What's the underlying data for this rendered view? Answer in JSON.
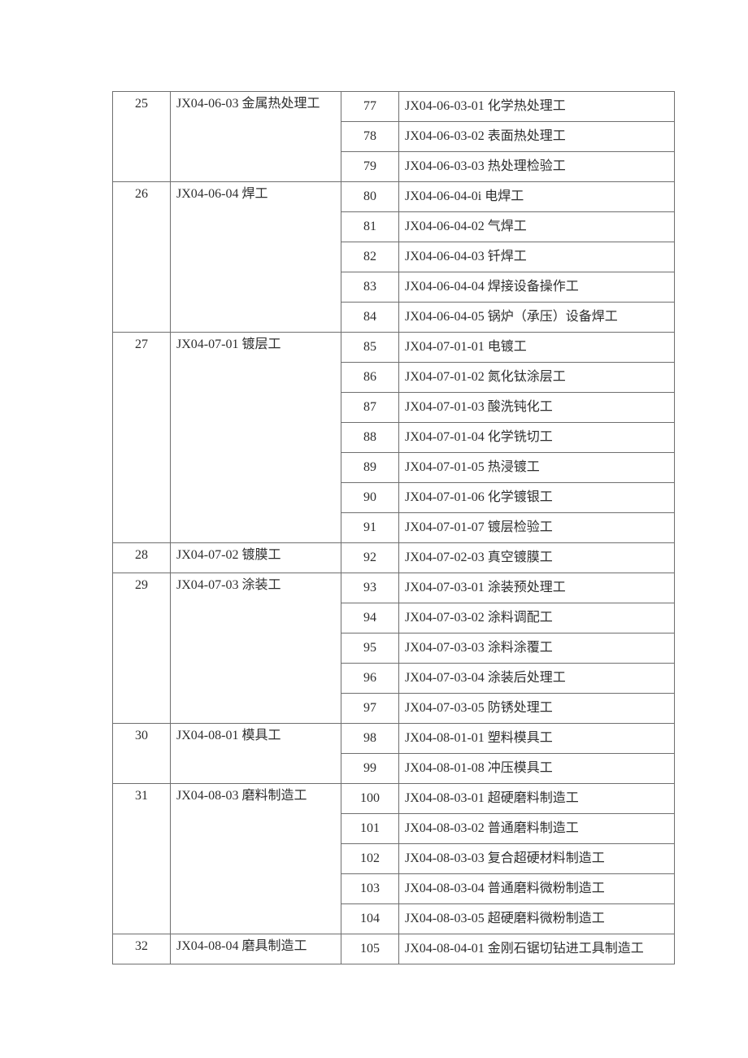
{
  "page": {
    "background": "#ffffff",
    "text_color": "#2e2e2e",
    "border_color": "#6f6f6f"
  },
  "table": {
    "groups": [
      {
        "seq": "25",
        "label": "JX04-06-03 金属热处理工",
        "items": [
          {
            "num": "77",
            "label": "JX04-06-03-01 化学热处理工"
          },
          {
            "num": "78",
            "label": "JX04-06-03-02 表面热处理工"
          },
          {
            "num": "79",
            "label": "JX04-06-03-03 热处理检验工"
          }
        ]
      },
      {
        "seq": "26",
        "label": "JX04-06-04 焊工",
        "items": [
          {
            "num": "80",
            "label": "JX04-06-04-0i 电焊工"
          },
          {
            "num": "81",
            "label": "JX04-06-04-02 气焊工"
          },
          {
            "num": "82",
            "label": "JX04-06-04-03 钎焊工"
          },
          {
            "num": "83",
            "label": "JX04-06-04-04 焊接设备操作工"
          },
          {
            "num": "84",
            "label": "JX04-06-04-05 锅炉（承压）设备焊工"
          }
        ]
      },
      {
        "seq": "27",
        "label": "JX04-07-01 镀层工",
        "items": [
          {
            "num": "85",
            "label": "JX04-07-01-01 电镀工"
          },
          {
            "num": "86",
            "label": "JX04-07-01-02 氮化钛涂层工"
          },
          {
            "num": "87",
            "label": "JX04-07-01-03 酸洗钝化工"
          },
          {
            "num": "88",
            "label": "JX04-07-01-04 化学铣切工"
          },
          {
            "num": "89",
            "label": "JX04-07-01-05 热浸镀工"
          },
          {
            "num": "90",
            "label": "JX04-07-01-06 化学镀银工"
          },
          {
            "num": "91",
            "label": "JX04-07-01-07 镀层检验工"
          }
        ]
      },
      {
        "seq": "28",
        "label": "JX04-07-02 镀膜工",
        "items": [
          {
            "num": "92",
            "label": "JX04-07-02-03 真空镀膜工"
          }
        ]
      },
      {
        "seq": "29",
        "label": "JX04-07-03 涂装工",
        "items": [
          {
            "num": "93",
            "label": "JX04-07-03-01 涂装预处理工"
          },
          {
            "num": "94",
            "label": "JX04-07-03-02 涂料调配工"
          },
          {
            "num": "95",
            "label": "JX04-07-03-03 涂料涂覆工"
          },
          {
            "num": "96",
            "label": "JX04-07-03-04 涂装后处理工"
          },
          {
            "num": "97",
            "label": "JX04-07-03-05 防锈处理工"
          }
        ]
      },
      {
        "seq": "30",
        "label": "JX04-08-01 模具工",
        "items": [
          {
            "num": "98",
            "label": "JX04-08-01-01 塑料模具工"
          },
          {
            "num": "99",
            "label": "JX04-08-01-08 冲压模具工"
          }
        ]
      },
      {
        "seq": "31",
        "label": "JX04-08-03 磨料制造工",
        "items": [
          {
            "num": "100",
            "label": "JX04-08-03-01 超硬磨料制造工"
          },
          {
            "num": "101",
            "label": "JX04-08-03-02 普通磨料制造工"
          },
          {
            "num": "102",
            "label": "JX04-08-03-03 复合超硬材料制造工"
          },
          {
            "num": "103",
            "label": "JX04-08-03-04 普通磨料微粉制造工"
          },
          {
            "num": "104",
            "label": "JX04-08-03-05 超硬磨料微粉制造工"
          }
        ]
      },
      {
        "seq": "32",
        "label": "JX04-08-04 磨具制造工",
        "items": [
          {
            "num": "105",
            "label": "JX04-08-04-01 金刚石锯切钻进工具制造工"
          }
        ]
      }
    ]
  }
}
